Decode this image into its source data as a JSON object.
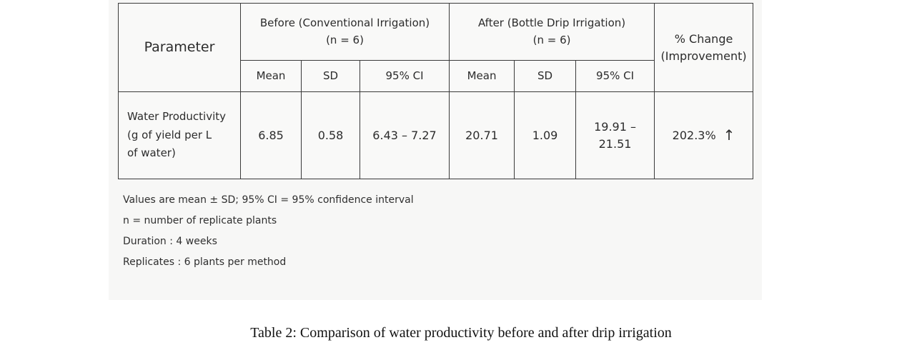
{
  "table": {
    "header": {
      "parameter": "Parameter",
      "before_group_line1": "Before (Conventional Irrigation)",
      "before_group_line2": "(n = 6)",
      "after_group_line1": "After (Bottle Drip Irrigation)",
      "after_group_line2": "(n = 6)",
      "change_line1": "% Change",
      "change_line2": "(Improvement)",
      "subcolumns": {
        "before_mean": "Mean",
        "before_sd": "SD",
        "before_ci": "95% CI",
        "after_mean": "Mean",
        "after_sd": "SD",
        "after_ci": "95% CI"
      }
    },
    "row": {
      "parameter_line1": "Water Productivity",
      "parameter_line2": "(g of yield per L",
      "parameter_line3": "of water)",
      "before_mean": "6.85",
      "before_sd": "0.58",
      "before_ci": "6.43 – 7.27",
      "after_mean": "20.71",
      "after_sd": "1.09",
      "after_ci": "19.91 – 21.51",
      "change": "202.3%",
      "change_icon": "arrow-up-icon",
      "change_arrow": "↑"
    }
  },
  "notes": {
    "line1": "Values are mean ± SD; 95% CI = 95% confidence interval",
    "line2": "n = number of replicate plants",
    "line3": "Duration : 4 weeks",
    "line4": "Replicates : 6 plants per method"
  },
  "caption": "Table 2: Comparison of water productivity before and after drip irrigation"
}
